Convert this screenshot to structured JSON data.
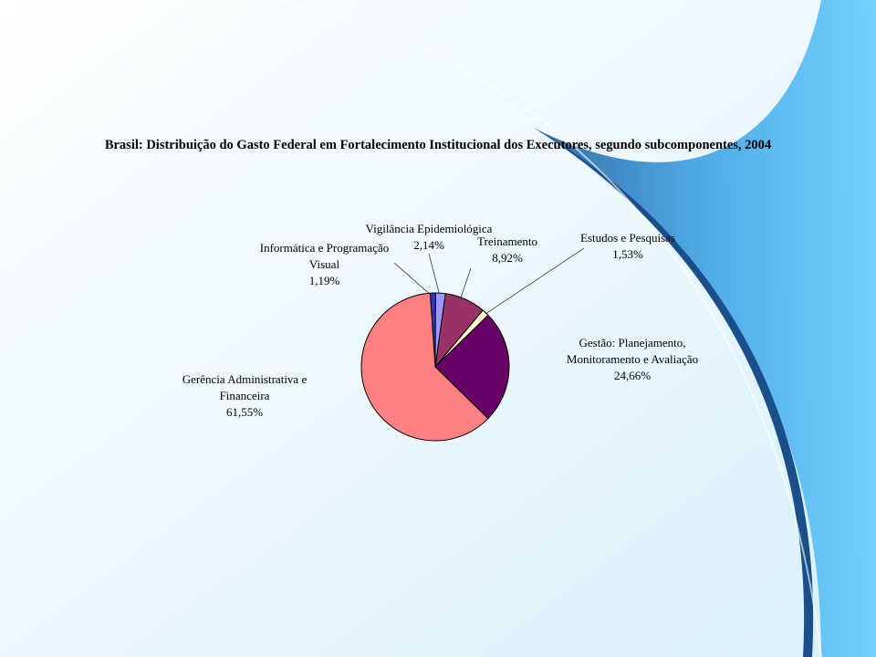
{
  "chart_data": {
    "type": "pie",
    "title": "Brasil: Distribuição do Gasto Federal em Fortalecimento Institucional dos Executores, segundo subcomponentes, 2004",
    "categories": [
      "Informática e Programação Visual",
      "Vigilância Epidemiológica",
      "Treinamento",
      "Estudos e Pesquisas",
      "Gestão: Planejamento, Monitoramento e Avaliação",
      "Gerência Administrativa e Financeira"
    ],
    "values": [
      1.19,
      2.14,
      8.92,
      1.53,
      24.66,
      61.55
    ],
    "value_labels": [
      "1,19%",
      "2,14%",
      "8,92%",
      "1,53%",
      "24,66%",
      "61,55%"
    ],
    "colors": [
      "#3333cc",
      "#9999ff",
      "#993366",
      "#ffffcc",
      "#660066",
      "#ff8080"
    ]
  }
}
